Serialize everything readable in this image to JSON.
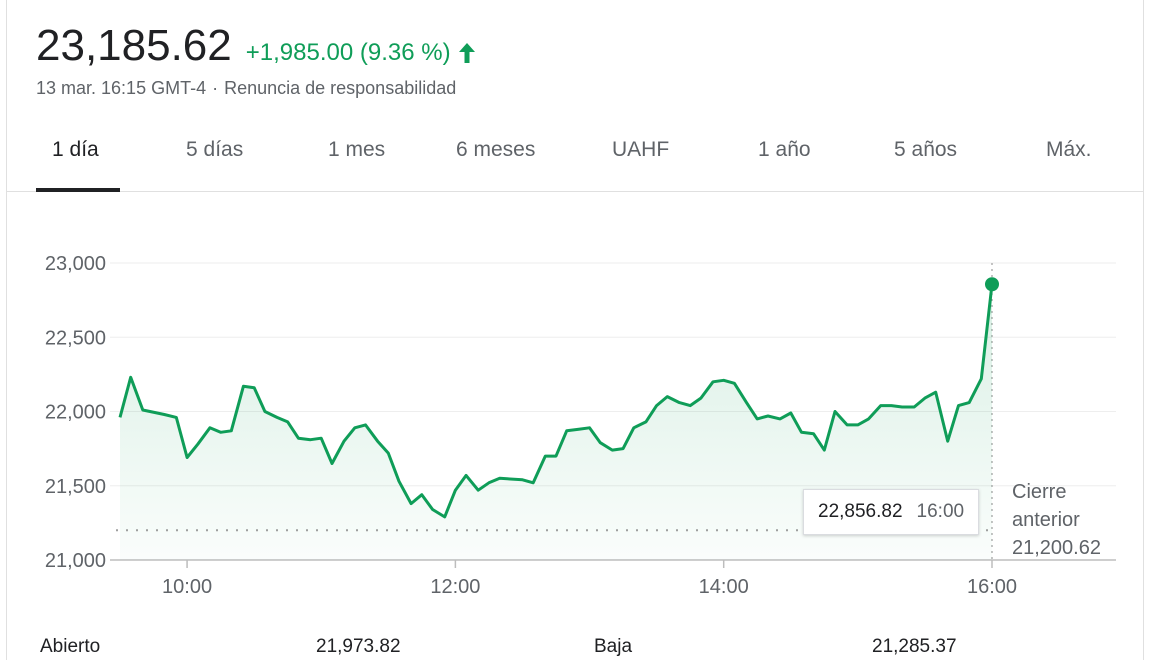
{
  "header": {
    "price": "23,185.62",
    "change": "+1,985.00 (9.36 %)",
    "change_color": "#0f9d58",
    "timestamp": "13 mar. 16:15 GMT-4",
    "disclaimer": "Renuncia de responsabilidad"
  },
  "tabs": [
    {
      "label": "1 día",
      "active": true
    },
    {
      "label": "5 días",
      "active": false
    },
    {
      "label": "1 mes",
      "active": false
    },
    {
      "label": "6 meses",
      "active": false
    },
    {
      "label": "UAHF",
      "active": false
    },
    {
      "label": "1 año",
      "active": false
    },
    {
      "label": "5 años",
      "active": false
    },
    {
      "label": "Máx.",
      "active": false
    }
  ],
  "tooltip": {
    "value": "22,856.82",
    "time": "16:00"
  },
  "stats": {
    "open_label": "Abierto",
    "open_value": "21,973.82",
    "low_label": "Baja",
    "low_value": "21,285.37"
  },
  "chart_data": {
    "type": "area",
    "line_color": "#0f9d58",
    "grid": true,
    "y_ticks": [
      21000,
      21500,
      22000,
      22500,
      23000
    ],
    "y_tick_labels": [
      "21,000",
      "21,500",
      "22,000",
      "22,500",
      "23,000"
    ],
    "x_ticks": [
      10,
      12,
      14,
      16
    ],
    "x_tick_labels": [
      "10:00",
      "12:00",
      "14:00",
      "16:00"
    ],
    "ylim": [
      21000,
      23000
    ],
    "xlim": [
      9.5,
      16.0
    ],
    "previous_close": {
      "label_line1": "Cierre",
      "label_line2": "anterior",
      "value": 21200.62,
      "value_label": "21,200.62"
    },
    "series": [
      {
        "x": [
          9.5,
          9.58,
          9.67,
          9.83,
          9.92,
          10.0,
          10.08,
          10.17,
          10.25,
          10.33,
          10.42,
          10.5,
          10.58,
          10.67,
          10.75,
          10.83,
          10.92,
          11.0,
          11.08,
          11.17,
          11.25,
          11.33,
          11.42,
          11.5,
          11.58,
          11.67,
          11.75,
          11.83,
          11.92,
          12.0,
          12.08,
          12.17,
          12.25,
          12.33,
          12.5,
          12.58,
          12.67,
          12.75,
          12.83,
          12.92,
          13.0,
          13.08,
          13.17,
          13.25,
          13.33,
          13.42,
          13.5,
          13.58,
          13.67,
          13.75,
          13.83,
          13.92,
          14.0,
          14.08,
          14.17,
          14.25,
          14.33,
          14.42,
          14.5,
          14.58,
          14.67,
          14.75,
          14.83,
          14.92,
          15.0,
          15.08,
          15.17,
          15.25,
          15.33,
          15.42,
          15.5,
          15.58,
          15.67,
          15.75,
          15.83,
          15.92,
          16.0
        ],
        "values": [
          21960,
          22230,
          22010,
          21980,
          21960,
          21690,
          21780,
          21890,
          21860,
          21870,
          22170,
          22160,
          22000,
          21960,
          21930,
          21820,
          21810,
          21820,
          21650,
          21800,
          21890,
          21910,
          21800,
          21720,
          21530,
          21380,
          21440,
          21340,
          21290,
          21470,
          21570,
          21470,
          21520,
          21550,
          21540,
          21520,
          21700,
          21700,
          21870,
          21880,
          21890,
          21790,
          21740,
          21750,
          21890,
          21930,
          22040,
          22100,
          22060,
          22040,
          22090,
          22200,
          22210,
          22190,
          22060,
          21950,
          21970,
          21950,
          21990,
          21860,
          21850,
          21740,
          22000,
          21910,
          21910,
          21950,
          22040,
          22040,
          22030,
          22030,
          22090,
          22130,
          21800,
          22040,
          22060,
          22220,
          22857
        ]
      }
    ],
    "endpoint": {
      "x": 16.0,
      "y": 22856.82
    }
  }
}
